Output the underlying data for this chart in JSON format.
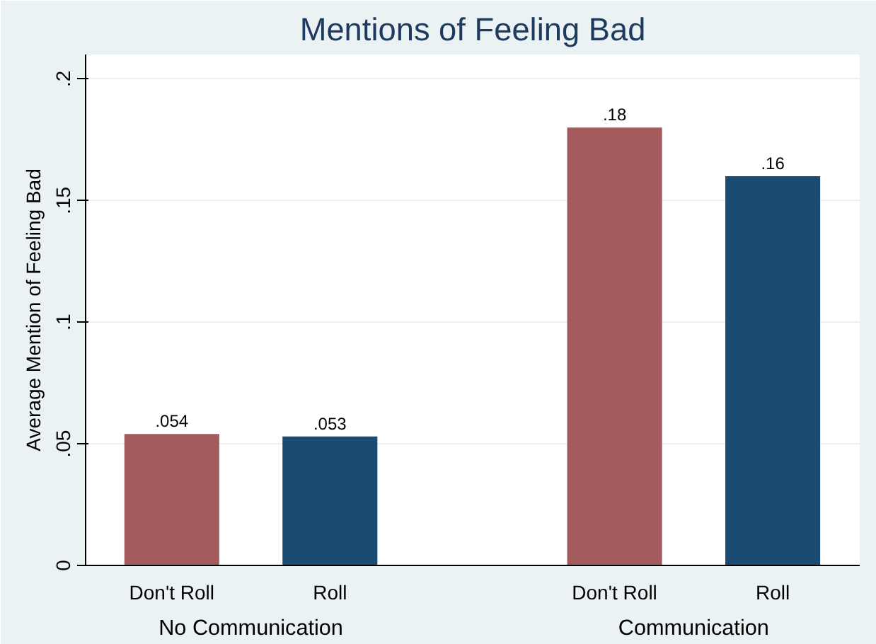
{
  "chart_data": {
    "type": "bar",
    "title": "Mentions of Feeling Bad",
    "ylabel": "Average Mention of Feeling Bad",
    "categories": [
      "Don't Roll",
      "Roll",
      "Don't Roll",
      "Roll"
    ],
    "values": [
      0.054,
      0.053,
      0.18,
      0.16
    ],
    "value_labels": [
      ".054",
      ".053",
      ".18",
      ".16"
    ],
    "colors": [
      "#a45b5e",
      "#1b4a72",
      "#a45b5e",
      "#1b4a72"
    ],
    "annotations": [
      "No Communication",
      "Communication"
    ],
    "ylim": [
      0,
      0.21
    ],
    "yticks": [
      {
        "value": 0,
        "label": "0"
      },
      {
        "value": 0.05,
        "label": ".05"
      },
      {
        "value": 0.1,
        "label": ".1"
      },
      {
        "value": 0.15,
        "label": ".15"
      },
      {
        "value": 0.2,
        "label": ".2"
      }
    ],
    "grid": "y"
  }
}
